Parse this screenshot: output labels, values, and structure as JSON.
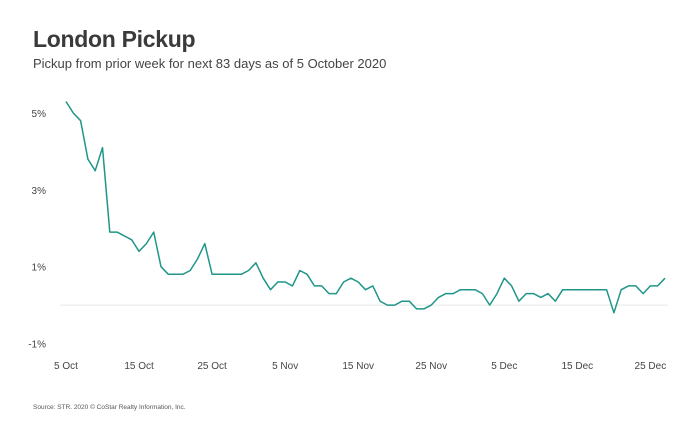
{
  "header": {
    "title": "London Pickup",
    "subtitle": "Pickup from prior week for next 83 days as of 5 October 2020"
  },
  "footer": {
    "source": "Source: STR. 2020 © CoStar Realty Information, Inc."
  },
  "colors": {
    "line": "#1f9688",
    "zero_line": "#e6e6e6",
    "text": "#444444"
  },
  "chart_data": {
    "type": "line",
    "title": "London Pickup",
    "subtitle": "Pickup from prior week for next 83 days as of 5 October 2020",
    "xlabel": "",
    "ylabel": "",
    "x_tick_labels": [
      "5 Oct",
      "15 Oct",
      "25 Oct",
      "5 Nov",
      "15 Nov",
      "25 Nov",
      "5 Dec",
      "15 Dec",
      "25 Dec"
    ],
    "y_tick_labels": [
      "5%",
      "3%",
      "1%",
      "-1%"
    ],
    "ylim": [
      -1.3,
      5.6
    ],
    "grid": false,
    "legend": "none",
    "series": [
      {
        "values": [
          5.3,
          5.0,
          4.8,
          3.8,
          3.5,
          4.1,
          1.9,
          1.9,
          1.8,
          1.7,
          1.4,
          1.6,
          1.9,
          1.0,
          0.8,
          0.8,
          0.8,
          0.9,
          1.2,
          1.6,
          0.8,
          0.8,
          0.8,
          0.8,
          0.8,
          0.9,
          1.1,
          0.7,
          0.4,
          0.6,
          0.6,
          0.5,
          0.9,
          0.8,
          0.5,
          0.5,
          0.3,
          0.3,
          0.6,
          0.7,
          0.6,
          0.4,
          0.5,
          0.1,
          0.0,
          0.0,
          0.1,
          0.1,
          -0.1,
          -0.1,
          0.0,
          0.2,
          0.3,
          0.3,
          0.4,
          0.4,
          0.4,
          0.3,
          0.0,
          0.3,
          0.7,
          0.5,
          0.1,
          0.3,
          0.3,
          0.2,
          0.3,
          0.1,
          0.4,
          0.4,
          0.4,
          0.4,
          0.4,
          0.4,
          0.4,
          -0.2,
          0.4,
          0.5,
          0.5,
          0.3,
          0.5,
          0.5,
          0.7
        ]
      }
    ]
  }
}
